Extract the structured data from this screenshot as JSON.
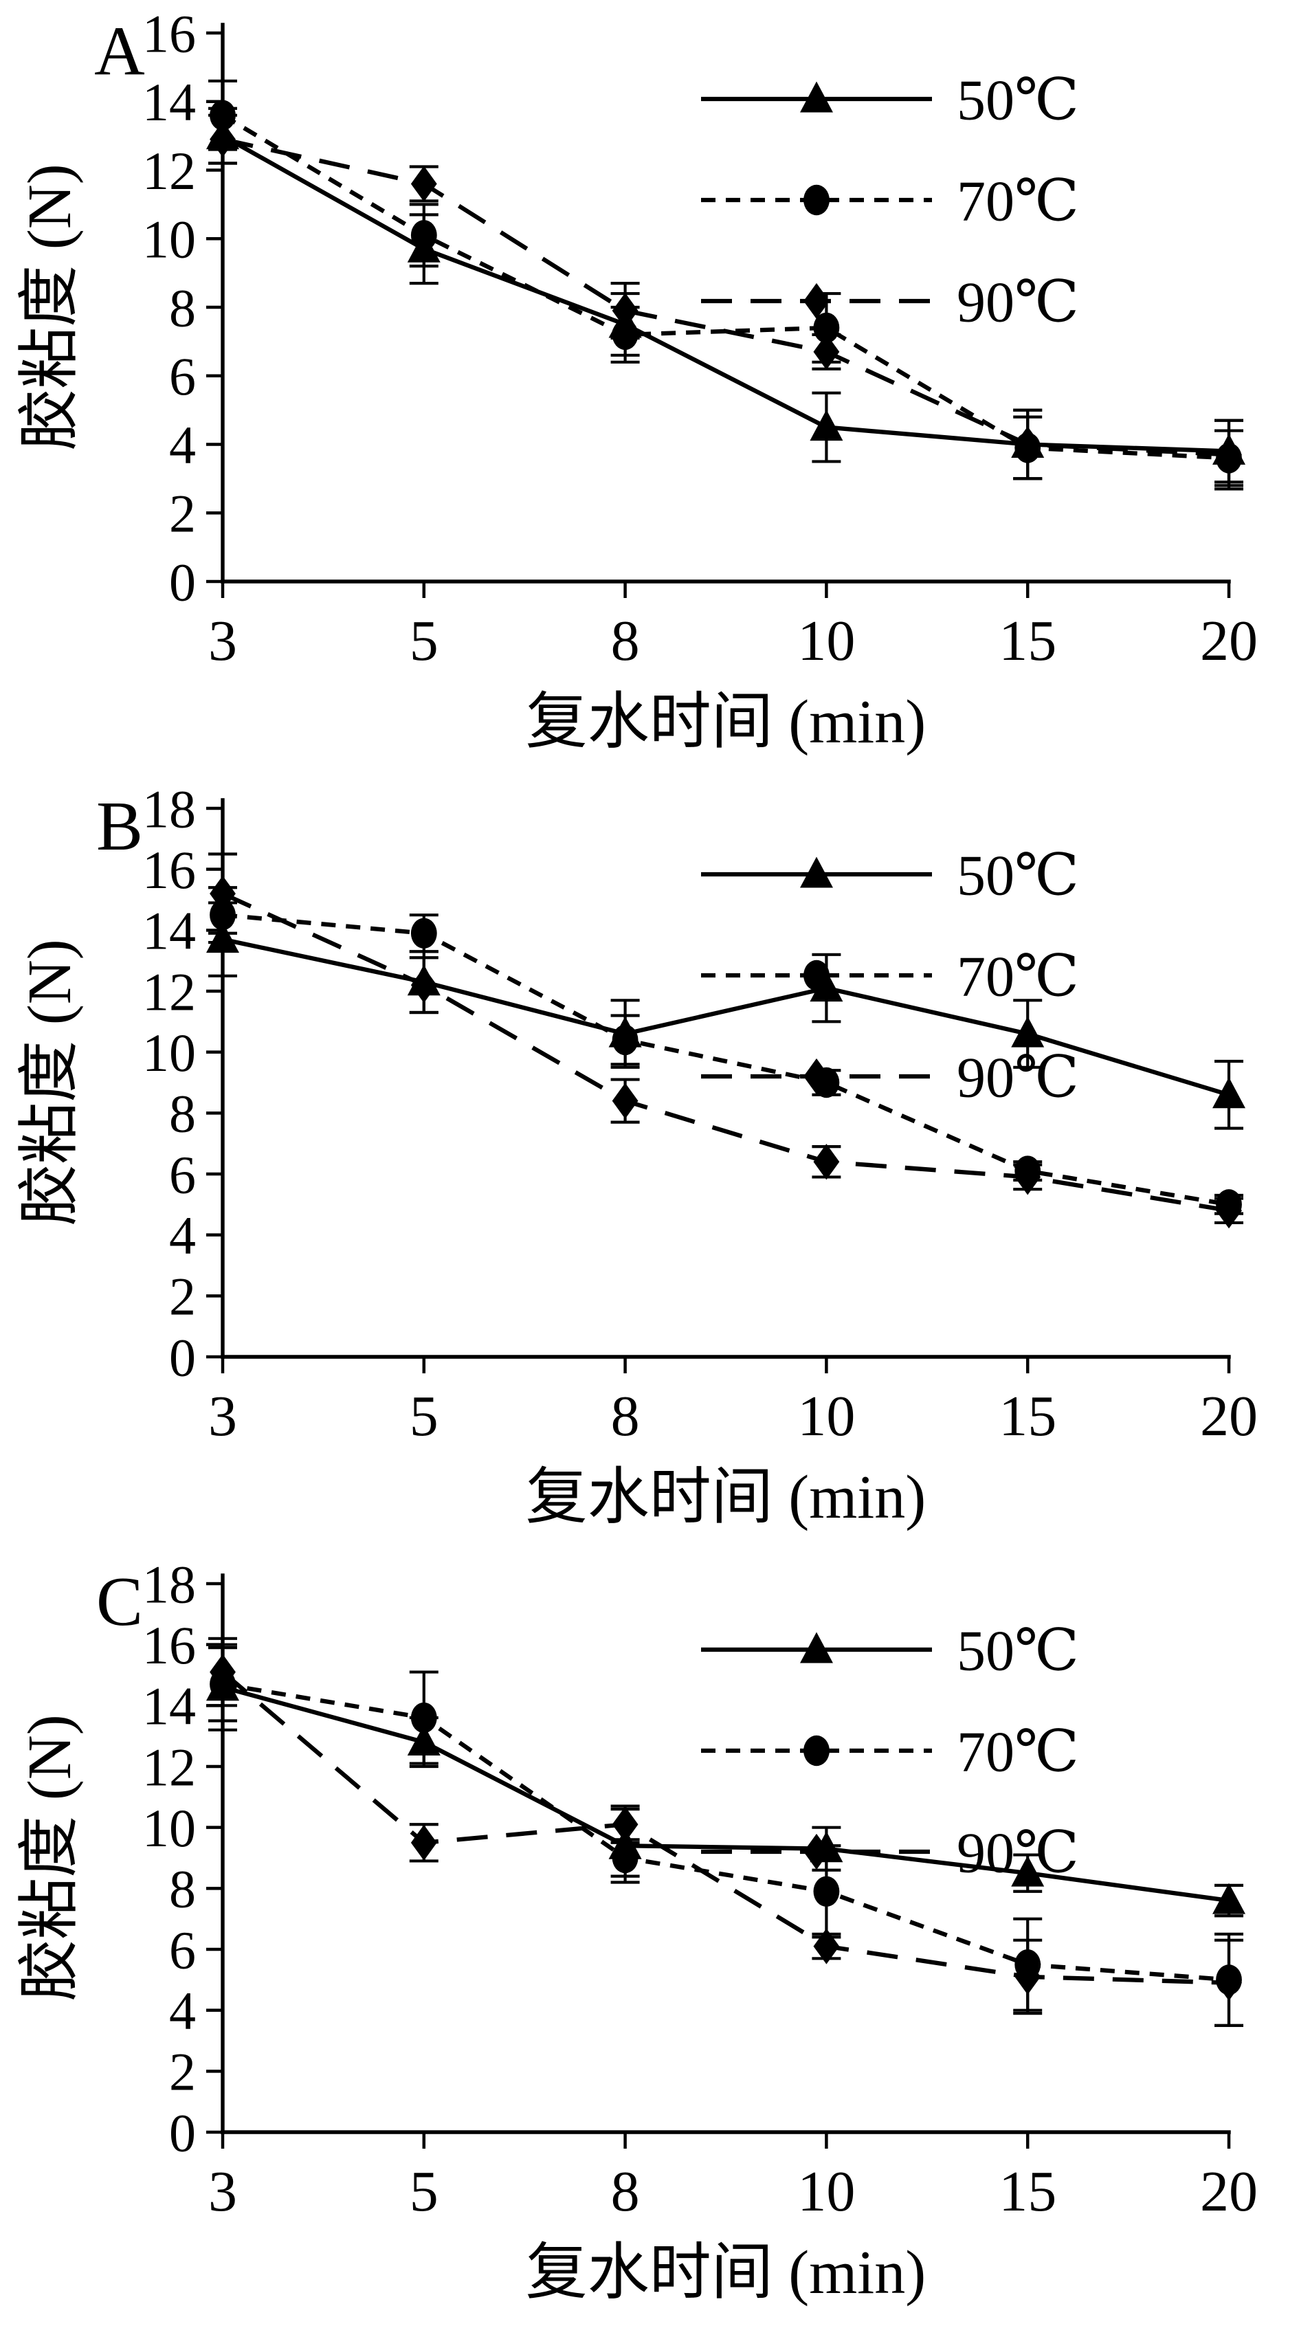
{
  "figure": {
    "background_color": "#ffffff",
    "ink_color": "#000000",
    "xlabel": "复水时间 (min)",
    "ylabel": "胶粘度 (N)",
    "x_tick_labels": [
      "3",
      "5",
      "8",
      "10",
      "15",
      "20"
    ],
    "legend_labels": [
      "50℃",
      "70℃",
      "90℃"
    ]
  },
  "chart_data": [
    {
      "type": "line",
      "panel_label": "A",
      "xlabel": "复水时间 (min)",
      "ylabel": "胶粘度 (N)",
      "x": [
        3,
        5,
        8,
        10,
        15,
        20
      ],
      "ylim": [
        0,
        16
      ],
      "ytick_step": 2,
      "grid": false,
      "legend_position": "top-right",
      "series": [
        {
          "name": "50℃",
          "marker": "triangle",
          "line": "solid",
          "values": [
            13.0,
            9.7,
            7.5,
            4.5,
            4.0,
            3.8
          ],
          "errors": [
            0.8,
            1.0,
            0.9,
            1.0,
            1.0,
            0.9
          ]
        },
        {
          "name": "70℃",
          "marker": "circle",
          "line": "dash",
          "values": [
            13.6,
            10.1,
            7.2,
            7.4,
            3.9,
            3.6
          ],
          "errors": [
            1.0,
            0.9,
            0.8,
            1.0,
            0.9,
            0.8
          ]
        },
        {
          "name": "90℃",
          "marker": "diamond",
          "line": "longdash",
          "values": [
            12.9,
            11.6,
            7.9,
            6.7,
            4.0,
            3.7
          ],
          "errors": [
            0.7,
            0.5,
            0.8,
            0.5,
            1.0,
            1.0
          ]
        }
      ]
    },
    {
      "type": "line",
      "panel_label": "B",
      "xlabel": "复水时间 (min)",
      "ylabel": "胶粘度 (N)",
      "x": [
        3,
        5,
        8,
        10,
        15,
        20
      ],
      "ylim": [
        0,
        18
      ],
      "ytick_step": 2,
      "grid": false,
      "legend_position": "top-right",
      "series": [
        {
          "name": "50℃",
          "marker": "triangle",
          "line": "solid",
          "values": [
            13.7,
            12.3,
            10.6,
            12.1,
            10.6,
            8.6
          ],
          "errors": [
            1.2,
            1.0,
            1.1,
            1.1,
            1.1,
            1.1
          ]
        },
        {
          "name": "70℃",
          "marker": "circle",
          "line": "dash",
          "values": [
            14.5,
            13.9,
            10.4,
            9.0,
            6.1,
            5.0
          ],
          "errors": [
            0.9,
            0.6,
            0.8,
            0.4,
            0.3,
            0.3
          ]
        },
        {
          "name": "90℃",
          "marker": "diamond",
          "line": "longdash",
          "values": [
            15.2,
            12.2,
            8.4,
            6.4,
            5.9,
            4.8
          ],
          "errors": [
            1.3,
            0.9,
            0.7,
            0.5,
            0.4,
            0.4
          ]
        }
      ]
    },
    {
      "type": "line",
      "panel_label": "C",
      "xlabel": "复水时间 (min)",
      "ylabel": "胶粘度 (N)",
      "x": [
        3,
        5,
        8,
        10,
        15,
        20
      ],
      "ylim": [
        0,
        18
      ],
      "ytick_step": 2,
      "grid": false,
      "legend_position": "top-right",
      "series": [
        {
          "name": "50℃",
          "marker": "triangle",
          "line": "solid",
          "values": [
            14.6,
            12.8,
            9.4,
            9.3,
            8.5,
            7.6
          ],
          "errors": [
            1.4,
            0.8,
            1.2,
            0.7,
            0.6,
            0.5
          ]
        },
        {
          "name": "70℃",
          "marker": "circle",
          "line": "dash",
          "values": [
            14.7,
            13.6,
            9.0,
            7.9,
            5.5,
            5.0
          ],
          "errors": [
            1.2,
            1.5,
            0.6,
            1.5,
            1.5,
            1.5
          ]
        },
        {
          "name": "90℃",
          "marker": "diamond",
          "line": "longdash",
          "values": [
            15.1,
            9.5,
            10.1,
            6.1,
            5.1,
            4.9
          ],
          "errors": [
            1.1,
            0.6,
            0.6,
            0.4,
            1.2,
            1.4
          ]
        }
      ]
    }
  ]
}
